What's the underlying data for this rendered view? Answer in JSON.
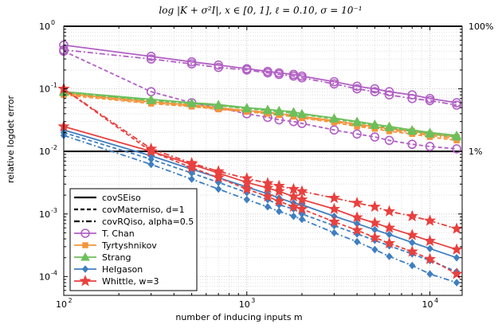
{
  "chart_data": {
    "type": "line",
    "title": "log |K + σ²I|, x ∈ [0, 1], ℓ = 0.10, σ = 10⁻¹",
    "xlabel": "number of inducing inputs m",
    "ylabel": "relative logdet error",
    "xscale": "log",
    "yscale": "log",
    "xlim": [
      100,
      15000
    ],
    "ylim": [
      5e-05,
      1
    ],
    "grid": true,
    "legend_position": "bottom-left",
    "x_tick_labels": [
      "10",
      "10",
      "10"
    ],
    "x_tick_exponents": [
      "2",
      "3",
      "4"
    ],
    "y_tick_labels": [
      "10",
      "10",
      "10",
      "10",
      "10"
    ],
    "y_tick_exponents": [
      "0",
      "-1",
      "-2",
      "-3",
      "-4"
    ],
    "reference_lines": [
      {
        "y": 1.0,
        "label": "100%"
      },
      {
        "y": 0.01,
        "label": "1%"
      }
    ],
    "x": [
      100,
      300,
      500,
      700,
      1000,
      1300,
      1500,
      1800,
      2000,
      3000,
      4000,
      5000,
      6000,
      8000,
      10000,
      14000
    ],
    "line_styles": [
      {
        "name": "covSEiso",
        "dash": "solid"
      },
      {
        "name": "covMaterniso, d=1",
        "dash": "dashed"
      },
      {
        "name": "covRQiso, alpha=0.5",
        "dash": "dashdot"
      }
    ],
    "methods": [
      {
        "name": "T. Chan",
        "color": "#b160c4",
        "marker": "circle"
      },
      {
        "name": "Tyrtyshnikov",
        "color": "#f5943a",
        "marker": "square"
      },
      {
        "name": "Strang",
        "color": "#6dbf5b",
        "marker": "triangle"
      },
      {
        "name": "Helgason",
        "color": "#3f7fc0",
        "marker": "diamond"
      },
      {
        "name": "Whittle, w=3",
        "color": "#e8413f",
        "marker": "star"
      }
    ],
    "series": [
      {
        "name": "T. Chan – covSEiso",
        "method": "T. Chan",
        "style": "solid",
        "values": [
          0.5,
          0.33,
          0.27,
          0.24,
          0.21,
          0.19,
          0.18,
          0.17,
          0.16,
          0.13,
          0.11,
          0.1,
          0.09,
          0.08,
          0.07,
          0.06
        ]
      },
      {
        "name": "T. Chan – covMaterniso",
        "method": "T. Chan",
        "style": "dashed",
        "values": [
          0.4,
          0.09,
          0.06,
          0.05,
          0.04,
          0.035,
          0.032,
          0.03,
          0.028,
          0.022,
          0.019,
          0.017,
          0.015,
          0.013,
          0.012,
          0.011
        ]
      },
      {
        "name": "T. Chan – covRQiso",
        "method": "T. Chan",
        "style": "dashdot",
        "values": [
          0.42,
          0.3,
          0.25,
          0.22,
          0.2,
          0.18,
          0.17,
          0.16,
          0.15,
          0.12,
          0.1,
          0.09,
          0.08,
          0.07,
          0.065,
          0.055
        ]
      },
      {
        "name": "Tyrtyshnikov – covSEiso",
        "method": "Tyrtyshnikov",
        "style": "solid",
        "values": [
          0.085,
          0.062,
          0.055,
          0.05,
          0.045,
          0.042,
          0.04,
          0.038,
          0.036,
          0.031,
          0.027,
          0.025,
          0.023,
          0.021,
          0.019,
          0.017
        ]
      },
      {
        "name": "Tyrtyshnikov – covMaterniso",
        "method": "Tyrtyshnikov",
        "style": "dashed",
        "values": [
          0.08,
          0.058,
          0.052,
          0.047,
          0.043,
          0.04,
          0.038,
          0.036,
          0.034,
          0.029,
          0.025,
          0.023,
          0.021,
          0.019,
          0.017,
          0.015
        ]
      },
      {
        "name": "Tyrtyshnikov – covRQiso",
        "method": "Tyrtyshnikov",
        "style": "dashdot",
        "values": [
          0.082,
          0.06,
          0.053,
          0.048,
          0.044,
          0.041,
          0.039,
          0.037,
          0.035,
          0.03,
          0.026,
          0.024,
          0.022,
          0.02,
          0.018,
          0.016
        ]
      },
      {
        "name": "Strang – covSEiso",
        "method": "Strang",
        "style": "solid",
        "values": [
          0.09,
          0.068,
          0.06,
          0.056,
          0.05,
          0.047,
          0.045,
          0.043,
          0.04,
          0.034,
          0.03,
          0.027,
          0.025,
          0.022,
          0.02,
          0.018
        ]
      },
      {
        "name": "Strang – covMaterniso",
        "method": "Strang",
        "style": "dashed",
        "values": [
          0.088,
          0.065,
          0.058,
          0.054,
          0.048,
          0.045,
          0.043,
          0.041,
          0.039,
          0.033,
          0.029,
          0.026,
          0.024,
          0.021,
          0.019,
          0.017
        ]
      },
      {
        "name": "Strang – covRQiso",
        "method": "Strang",
        "style": "dashdot",
        "values": [
          0.089,
          0.066,
          0.059,
          0.055,
          0.049,
          0.046,
          0.044,
          0.042,
          0.04,
          0.034,
          0.03,
          0.027,
          0.025,
          0.022,
          0.02,
          0.018
        ]
      },
      {
        "name": "Helgason – covSEiso",
        "method": "Helgason",
        "style": "solid",
        "values": [
          0.022,
          0.0085,
          0.0052,
          0.0038,
          0.0027,
          0.0021,
          0.0018,
          0.0015,
          0.0014,
          0.00092,
          0.0007,
          0.00056,
          0.00047,
          0.00035,
          0.00028,
          0.0002
        ]
      },
      {
        "name": "Helgason – covMaterniso",
        "method": "Helgason",
        "style": "dashed",
        "values": [
          0.02,
          0.0075,
          0.0045,
          0.0032,
          0.0022,
          0.0017,
          0.0014,
          0.0012,
          0.001,
          0.00065,
          0.00048,
          0.00038,
          0.00031,
          0.00023,
          0.00018,
          0.00012
        ]
      },
      {
        "name": "Helgason – covRQiso",
        "method": "Helgason",
        "style": "dashdot",
        "values": [
          0.018,
          0.0062,
          0.0036,
          0.0025,
          0.0017,
          0.0013,
          0.0011,
          0.00092,
          0.00082,
          0.0005,
          0.00036,
          0.00027,
          0.00021,
          0.00015,
          0.00011,
          8e-05
        ]
      },
      {
        "name": "Whittle – covSEiso",
        "method": "Whittle, w=3",
        "style": "solid",
        "values": [
          0.025,
          0.01,
          0.0062,
          0.0045,
          0.0032,
          0.0026,
          0.0023,
          0.0019,
          0.0017,
          0.0012,
          0.00088,
          0.00072,
          0.0006,
          0.00046,
          0.00037,
          0.00027
        ]
      },
      {
        "name": "Whittle – covMaterniso",
        "method": "Whittle, w=3",
        "style": "dashed",
        "values": [
          0.1,
          0.01,
          0.0055,
          0.0038,
          0.0025,
          0.0019,
          0.0016,
          0.0013,
          0.0012,
          0.00075,
          0.00055,
          0.00042,
          0.00034,
          0.00025,
          0.00019,
          0.00011
        ]
      },
      {
        "name": "Whittle – covRQiso",
        "method": "Whittle, w=3",
        "style": "dashdot",
        "values": [
          0.1,
          0.011,
          0.0065,
          0.0048,
          0.0037,
          0.0031,
          0.0028,
          0.0025,
          0.0023,
          0.0018,
          0.0015,
          0.0013,
          0.0011,
          0.00092,
          0.00078,
          0.00058
        ]
      }
    ]
  }
}
